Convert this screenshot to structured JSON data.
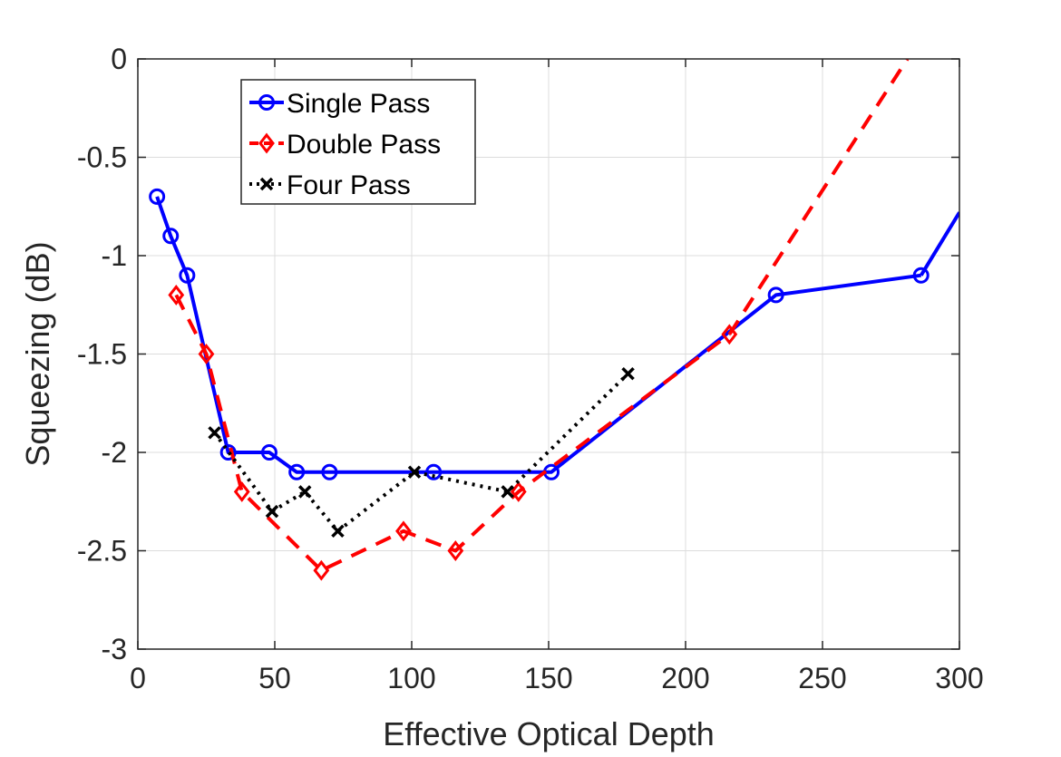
{
  "chart_data": {
    "type": "line",
    "title": "",
    "xlabel": "Effective Optical Depth",
    "ylabel": "Squeezing (dB)",
    "xlim": [
      0,
      300
    ],
    "ylim": [
      -3,
      0
    ],
    "xticks": [
      0,
      50,
      100,
      150,
      200,
      250,
      300
    ],
    "yticks": [
      0,
      -0.5,
      -1,
      -1.5,
      -2,
      -2.5,
      -3
    ],
    "xtick_labels": [
      "0",
      "50",
      "100",
      "150",
      "200",
      "250",
      "300"
    ],
    "ytick_labels": [
      "0",
      "-0.5",
      "-1",
      "-1.5",
      "-2",
      "-2.5",
      "-3"
    ],
    "grid": true,
    "legend_position": "top-left",
    "series": [
      {
        "name": "Single Pass",
        "color": "#0000FF",
        "line_style": "solid",
        "marker": "circle",
        "x": [
          7,
          12,
          18,
          33,
          48,
          58,
          70,
          108,
          151,
          233,
          286
        ],
        "y": [
          -0.7,
          -0.9,
          -1.1,
          -2.0,
          -2.0,
          -2.1,
          -2.1,
          -2.1,
          -2.1,
          -1.2,
          -1.1
        ],
        "extension": {
          "x": [
            286,
            300
          ],
          "y": [
            -1.1,
            -0.78
          ]
        }
      },
      {
        "name": "Double Pass",
        "color": "#FF0000",
        "line_style": "dashed",
        "marker": "diamond",
        "x": [
          14,
          25,
          38,
          67,
          97,
          116,
          139,
          216
        ],
        "y": [
          -1.2,
          -1.5,
          -2.2,
          -2.6,
          -2.4,
          -2.5,
          -2.2,
          -1.4
        ],
        "extension": {
          "x": [
            216,
            281
          ],
          "y": [
            -1.4,
            0
          ]
        }
      },
      {
        "name": "Four Pass",
        "color": "#000000",
        "line_style": "dotted",
        "marker": "x",
        "x": [
          28,
          49,
          61,
          73,
          101,
          135,
          179
        ],
        "y": [
          -1.9,
          -2.3,
          -2.2,
          -2.4,
          -2.1,
          -2.2,
          -1.6
        ]
      }
    ]
  }
}
